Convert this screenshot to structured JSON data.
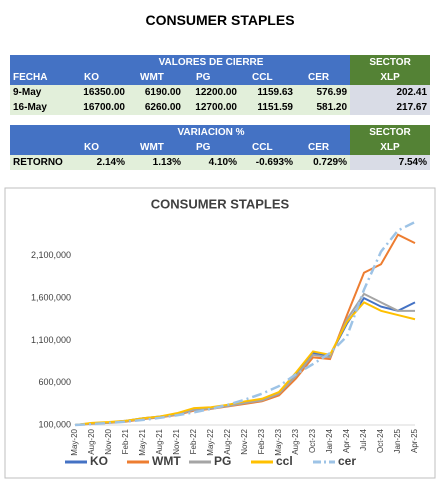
{
  "title": "CONSUMER STAPLES",
  "table1": {
    "group_header": "VALORES DE CIERRE",
    "sector_header": "SECTOR",
    "columns": [
      "FECHA",
      "KO",
      "WMT",
      "PG",
      "CCL",
      "CER",
      "XLP"
    ],
    "rows": [
      [
        "9-May",
        "16350.00",
        "6190.00",
        "12200.00",
        "1159.63",
        "576.99",
        "202.41"
      ],
      [
        "16-May",
        "16700.00",
        "6260.00",
        "12700.00",
        "1151.59",
        "581.20",
        "217.67"
      ]
    ]
  },
  "table2": {
    "group_header": "VARIACION %",
    "sector_header": "SECTOR",
    "columns": [
      "KO",
      "WMT",
      "PG",
      "CCL",
      "CER",
      "XLP"
    ],
    "rows": [
      [
        "RETORNO",
        "2.14%",
        "1.13%",
        "4.10%",
        "-0.693%",
        "0.729%",
        "7.54%"
      ]
    ]
  },
  "chart_data": {
    "type": "line",
    "title": "CONSUMER STAPLES",
    "categories": [
      "May-20",
      "Aug-20",
      "Nov-20",
      "Feb-21",
      "May-21",
      "Aug-21",
      "Nov-21",
      "Feb-22",
      "May-22",
      "Aug-22",
      "Nov-22",
      "Feb-23",
      "May-23",
      "Aug-23",
      "Oct-23",
      "Jan-24",
      "Apr-24",
      "Jul-24",
      "Oct-24",
      "Jan-25",
      "Apr-25"
    ],
    "series": [
      {
        "name": "KO",
        "color": "#4472c4",
        "dash": false,
        "values": [
          100000,
          120000,
          130000,
          150000,
          180000,
          200000,
          230000,
          290000,
          300000,
          330000,
          370000,
          400000,
          480000,
          700000,
          950000,
          920000,
          1300000,
          1600000,
          1500000,
          1450000,
          1550000
        ]
      },
      {
        "name": "WMT",
        "color": "#ed7d31",
        "dash": false,
        "values": [
          100000,
          115000,
          125000,
          140000,
          170000,
          190000,
          220000,
          270000,
          290000,
          320000,
          350000,
          380000,
          450000,
          650000,
          900000,
          880000,
          1400000,
          1900000,
          2000000,
          2350000,
          2250000
        ]
      },
      {
        "name": "PG",
        "color": "#a5a5a5",
        "dash": false,
        "values": [
          100000,
          118000,
          128000,
          145000,
          175000,
          195000,
          225000,
          280000,
          295000,
          325000,
          360000,
          390000,
          470000,
          680000,
          930000,
          900000,
          1350000,
          1650000,
          1550000,
          1450000,
          1450000
        ]
      },
      {
        "name": "ccl",
        "color": "#ffc000",
        "dash": false,
        "values": [
          100000,
          125000,
          135000,
          150000,
          180000,
          200000,
          240000,
          300000,
          310000,
          340000,
          380000,
          410000,
          490000,
          720000,
          970000,
          930000,
          1320000,
          1550000,
          1450000,
          1400000,
          1350000
        ]
      },
      {
        "name": "cer",
        "color": "#9dc3e6",
        "dash": true,
        "values": [
          100000,
          110000,
          125000,
          140000,
          160000,
          185000,
          215000,
          250000,
          290000,
          340000,
          400000,
          470000,
          560000,
          700000,
          820000,
          950000,
          1150000,
          1700000,
          2150000,
          2400000,
          2500000
        ]
      }
    ],
    "ylim": [
      100000,
      2500000
    ],
    "yticks": [
      {
        "value": 100000,
        "label": "100,000"
      },
      {
        "value": 600000,
        "label": "600,000"
      },
      {
        "value": 1100000,
        "label": "1,100,000"
      },
      {
        "value": 1600000,
        "label": "1,600,000"
      },
      {
        "value": 2100000,
        "label": "2,100,000"
      }
    ],
    "grid": false,
    "legend": "bottom"
  }
}
